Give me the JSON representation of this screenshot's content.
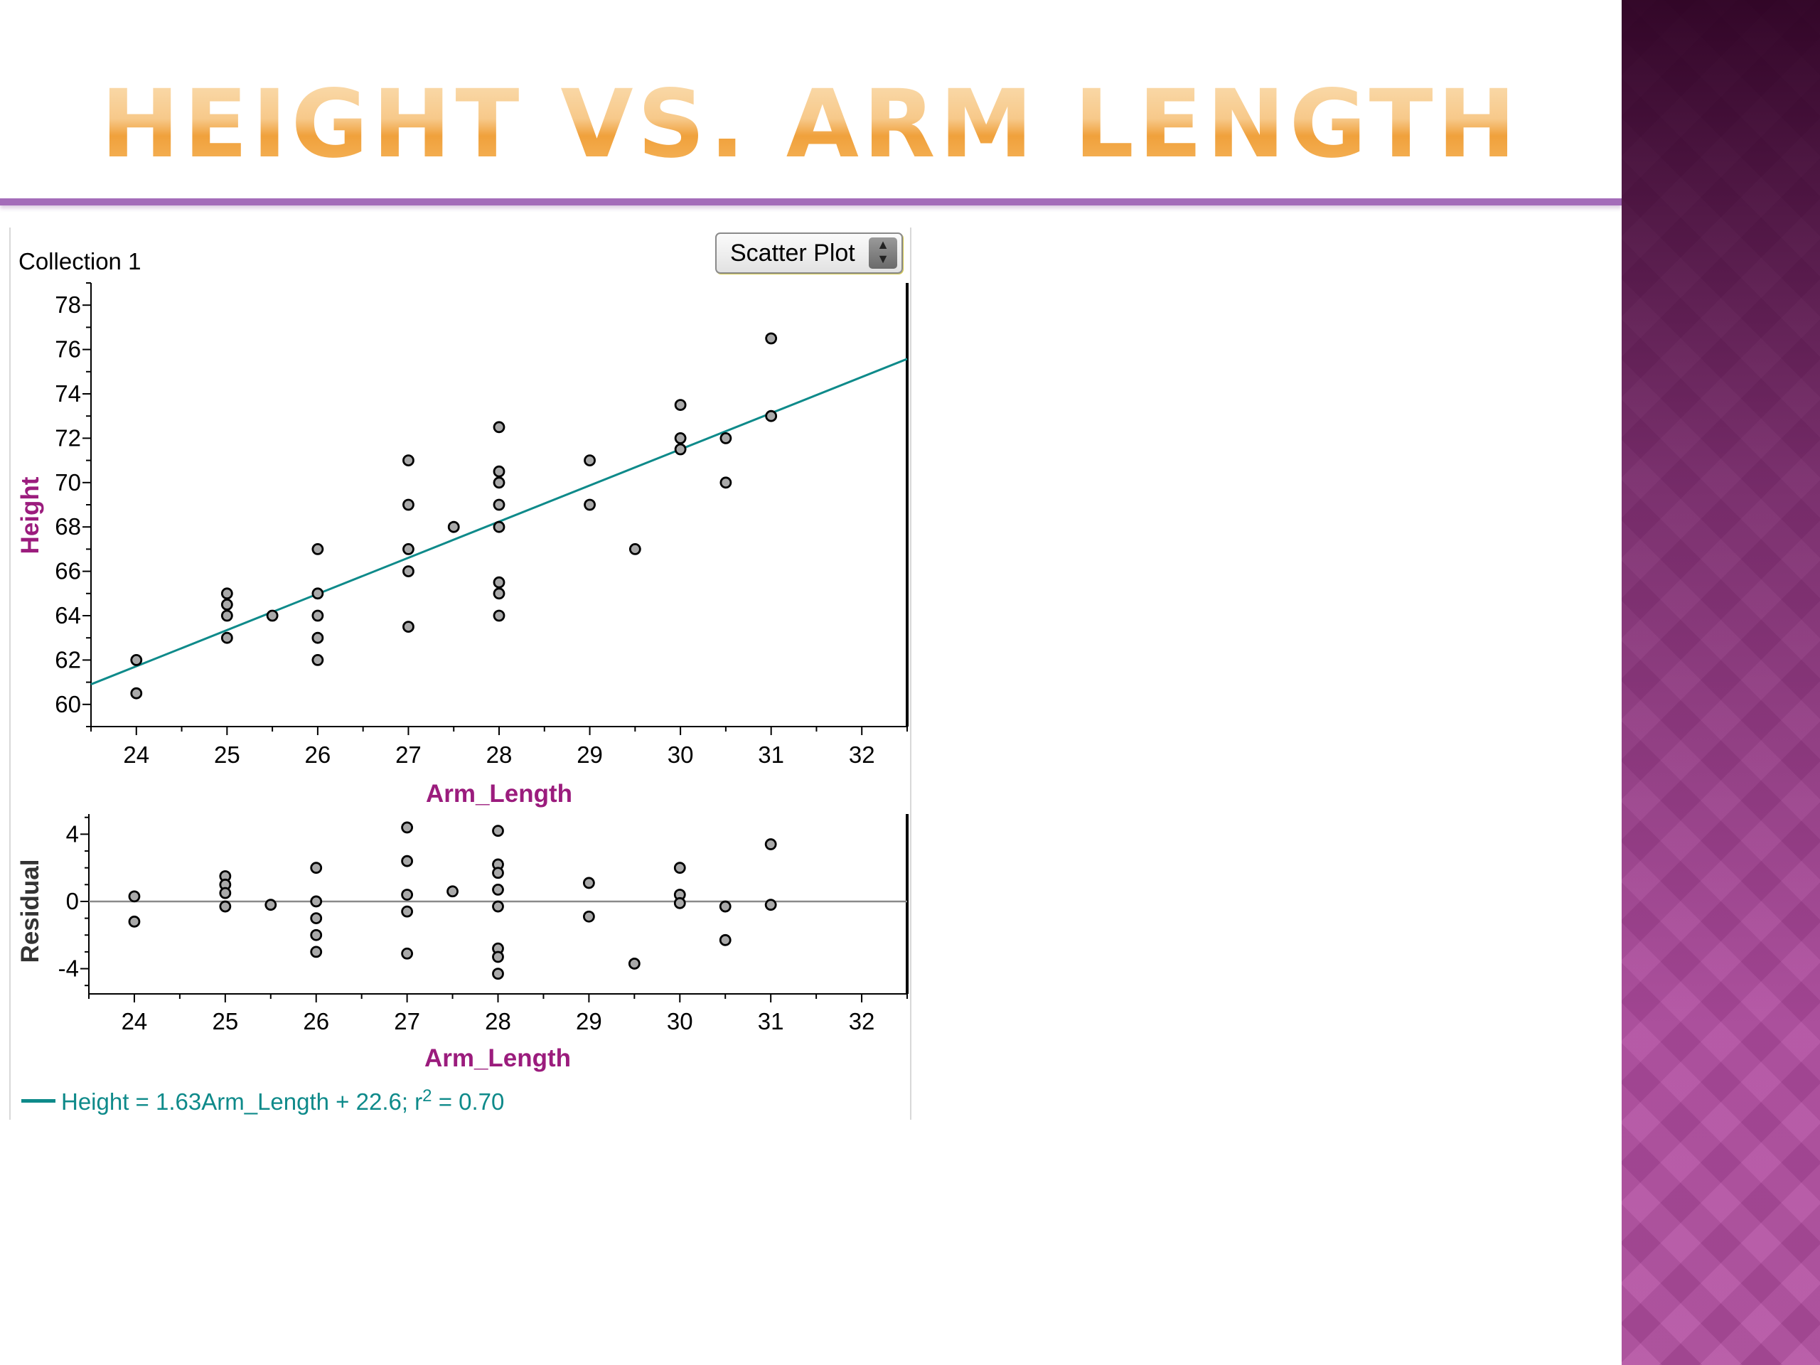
{
  "slide": {
    "title": "HEIGHT VS. ARM LENGTH"
  },
  "graph": {
    "collection_label": "Collection 1",
    "plot_type": "Scatter Plot",
    "equation": {
      "prefix": "Height = 1.63Arm_Length + 22.6; r",
      "exponent": "2",
      "suffix": " = 0.70"
    }
  },
  "colors": {
    "title": "#f2a23a",
    "rule": "#a46cb9",
    "axis_title": "#9b1c7d",
    "regression_line": "#0e8a8a",
    "point_fill": "#a9a9a9",
    "point_stroke": "#000000",
    "side_panel": "#b24ea0"
  },
  "chart_data": [
    {
      "type": "scatter",
      "xlabel": "Arm_Length",
      "ylabel": "Height",
      "xlim": [
        23.5,
        32.5
      ],
      "ylim": [
        59,
        79
      ],
      "xticks": [
        24,
        25,
        26,
        27,
        28,
        29,
        30,
        31,
        32
      ],
      "yticks": [
        60,
        62,
        64,
        66,
        68,
        70,
        72,
        74,
        76,
        78
      ],
      "grid": false,
      "legend": "none",
      "regression": {
        "slope": 1.63,
        "intercept": 22.6,
        "r_squared": 0.7
      },
      "points": [
        [
          24,
          62
        ],
        [
          24,
          60.5
        ],
        [
          25,
          65
        ],
        [
          25,
          64.5
        ],
        [
          25,
          64
        ],
        [
          25,
          63
        ],
        [
          25.5,
          64
        ],
        [
          26,
          67
        ],
        [
          26,
          65
        ],
        [
          26,
          64
        ],
        [
          26,
          63
        ],
        [
          26,
          62
        ],
        [
          27,
          71
        ],
        [
          27,
          69
        ],
        [
          27,
          67
        ],
        [
          27,
          66
        ],
        [
          27,
          63.5
        ],
        [
          27.5,
          68
        ],
        [
          28,
          72.5
        ],
        [
          28,
          70.5
        ],
        [
          28,
          70
        ],
        [
          28,
          69
        ],
        [
          28,
          68
        ],
        [
          28,
          65.5
        ],
        [
          28,
          65
        ],
        [
          28,
          64
        ],
        [
          29,
          71
        ],
        [
          29,
          69
        ],
        [
          29.5,
          67
        ],
        [
          30,
          73.5
        ],
        [
          30,
          72
        ],
        [
          30,
          71.5
        ],
        [
          30.5,
          72
        ],
        [
          30.5,
          70
        ],
        [
          31,
          76.5
        ],
        [
          31,
          73
        ]
      ]
    },
    {
      "type": "scatter",
      "xlabel": "Arm_Length",
      "ylabel": "Residual",
      "xlim": [
        23.5,
        32.5
      ],
      "ylim": [
        -5.5,
        5.2
      ],
      "xticks": [
        24,
        25,
        26,
        27,
        28,
        29,
        30,
        31,
        32
      ],
      "yticks": [
        -4,
        0,
        4
      ],
      "zero_line": true,
      "grid": false,
      "legend": "none",
      "points": [
        [
          24,
          0.3
        ],
        [
          24,
          -1.2
        ],
        [
          25,
          1.5
        ],
        [
          25,
          1.0
        ],
        [
          25,
          0.5
        ],
        [
          25,
          -0.3
        ],
        [
          25.5,
          -0.2
        ],
        [
          26,
          2.0
        ],
        [
          26,
          0.0
        ],
        [
          26,
          -1.0
        ],
        [
          26,
          -2.0
        ],
        [
          26,
          -3.0
        ],
        [
          27,
          4.4
        ],
        [
          27,
          2.4
        ],
        [
          27,
          0.4
        ],
        [
          27,
          -0.6
        ],
        [
          27,
          -3.1
        ],
        [
          27.5,
          0.6
        ],
        [
          28,
          4.2
        ],
        [
          28,
          2.2
        ],
        [
          28,
          1.7
        ],
        [
          28,
          0.7
        ],
        [
          28,
          -0.3
        ],
        [
          28,
          -2.8
        ],
        [
          28,
          -3.3
        ],
        [
          28,
          -4.3
        ],
        [
          29,
          1.1
        ],
        [
          29,
          -0.9
        ],
        [
          29.5,
          -3.7
        ],
        [
          30,
          2.0
        ],
        [
          30,
          0.4
        ],
        [
          30,
          -0.1
        ],
        [
          30.5,
          -0.3
        ],
        [
          30.5,
          -2.3
        ],
        [
          31,
          3.4
        ],
        [
          31,
          -0.2
        ]
      ]
    }
  ]
}
